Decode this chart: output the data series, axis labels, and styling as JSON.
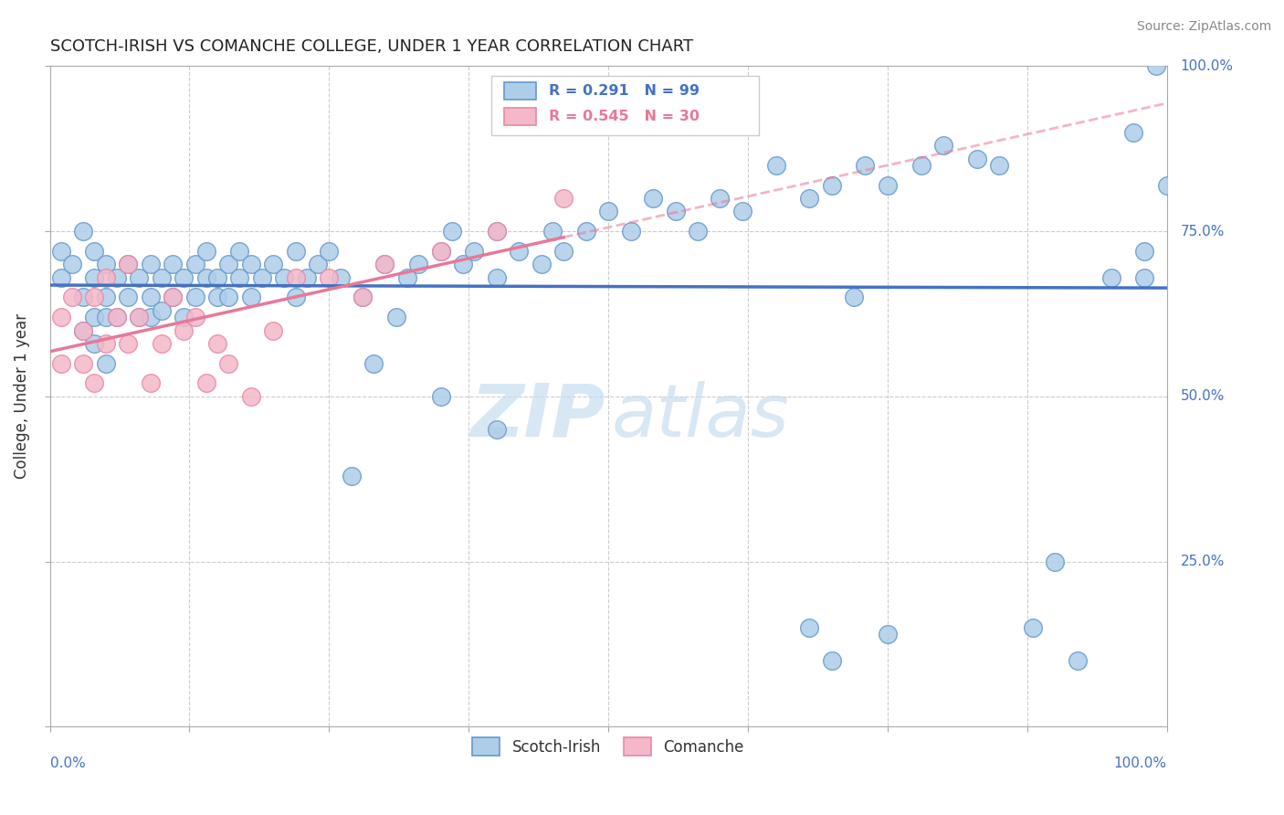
{
  "title": "SCOTCH-IRISH VS COMANCHE COLLEGE, UNDER 1 YEAR CORRELATION CHART",
  "source": "Source: ZipAtlas.com",
  "ylabel": "College, Under 1 year",
  "xlim": [
    0,
    1.0
  ],
  "ylim": [
    0,
    1.0
  ],
  "blue_color": "#aecde8",
  "blue_edge_color": "#6699cc",
  "blue_line_color": "#4472c4",
  "pink_color": "#f4b8c8",
  "pink_edge_color": "#e888a8",
  "pink_line_color": "#e87898",
  "legend_scotch_label": "Scotch-Irish",
  "legend_comanche_label": "Comanche",
  "watermark_zip": "ZIP",
  "watermark_atlas": "atlas",
  "blue_R": 0.291,
  "blue_N": 99,
  "pink_R": 0.545,
  "pink_N": 30,
  "blue_x": [
    0.01,
    0.01,
    0.02,
    0.03,
    0.03,
    0.03,
    0.04,
    0.04,
    0.04,
    0.04,
    0.05,
    0.05,
    0.05,
    0.05,
    0.06,
    0.06,
    0.07,
    0.07,
    0.08,
    0.08,
    0.09,
    0.09,
    0.09,
    0.1,
    0.1,
    0.11,
    0.11,
    0.12,
    0.12,
    0.13,
    0.13,
    0.14,
    0.14,
    0.15,
    0.15,
    0.16,
    0.16,
    0.17,
    0.17,
    0.18,
    0.18,
    0.19,
    0.2,
    0.21,
    0.22,
    0.22,
    0.23,
    0.24,
    0.25,
    0.26,
    0.27,
    0.28,
    0.29,
    0.3,
    0.31,
    0.32,
    0.33,
    0.35,
    0.36,
    0.37,
    0.38,
    0.4,
    0.4,
    0.42,
    0.44,
    0.45,
    0.46,
    0.48,
    0.5,
    0.52,
    0.54,
    0.56,
    0.58,
    0.6,
    0.62,
    0.65,
    0.68,
    0.7,
    0.73,
    0.75,
    0.78,
    0.8,
    0.83,
    0.35,
    0.4,
    0.85,
    0.88,
    0.9,
    0.92,
    0.95,
    0.97,
    0.98,
    0.98,
    0.99,
    1.0,
    0.68,
    0.7,
    0.72,
    0.75
  ],
  "blue_y": [
    0.68,
    0.72,
    0.7,
    0.75,
    0.65,
    0.6,
    0.68,
    0.72,
    0.62,
    0.58,
    0.7,
    0.65,
    0.62,
    0.55,
    0.68,
    0.62,
    0.7,
    0.65,
    0.68,
    0.62,
    0.65,
    0.7,
    0.62,
    0.68,
    0.63,
    0.7,
    0.65,
    0.68,
    0.62,
    0.7,
    0.65,
    0.68,
    0.72,
    0.65,
    0.68,
    0.7,
    0.65,
    0.68,
    0.72,
    0.7,
    0.65,
    0.68,
    0.7,
    0.68,
    0.65,
    0.72,
    0.68,
    0.7,
    0.72,
    0.68,
    0.38,
    0.65,
    0.55,
    0.7,
    0.62,
    0.68,
    0.7,
    0.72,
    0.75,
    0.7,
    0.72,
    0.75,
    0.68,
    0.72,
    0.7,
    0.75,
    0.72,
    0.75,
    0.78,
    0.75,
    0.8,
    0.78,
    0.75,
    0.8,
    0.78,
    0.85,
    0.8,
    0.82,
    0.85,
    0.82,
    0.85,
    0.88,
    0.86,
    0.5,
    0.45,
    0.85,
    0.15,
    0.25,
    0.1,
    0.68,
    0.9,
    0.68,
    0.72,
    1.0,
    0.82,
    0.15,
    0.1,
    0.65,
    0.14
  ],
  "pink_x": [
    0.01,
    0.01,
    0.02,
    0.03,
    0.03,
    0.04,
    0.04,
    0.05,
    0.05,
    0.06,
    0.07,
    0.07,
    0.08,
    0.09,
    0.1,
    0.11,
    0.12,
    0.13,
    0.14,
    0.15,
    0.16,
    0.18,
    0.2,
    0.22,
    0.25,
    0.28,
    0.3,
    0.35,
    0.4,
    0.46
  ],
  "pink_y": [
    0.62,
    0.55,
    0.65,
    0.6,
    0.55,
    0.65,
    0.52,
    0.68,
    0.58,
    0.62,
    0.7,
    0.58,
    0.62,
    0.52,
    0.58,
    0.65,
    0.6,
    0.62,
    0.52,
    0.58,
    0.55,
    0.5,
    0.6,
    0.68,
    0.68,
    0.65,
    0.7,
    0.72,
    0.75,
    0.8
  ]
}
